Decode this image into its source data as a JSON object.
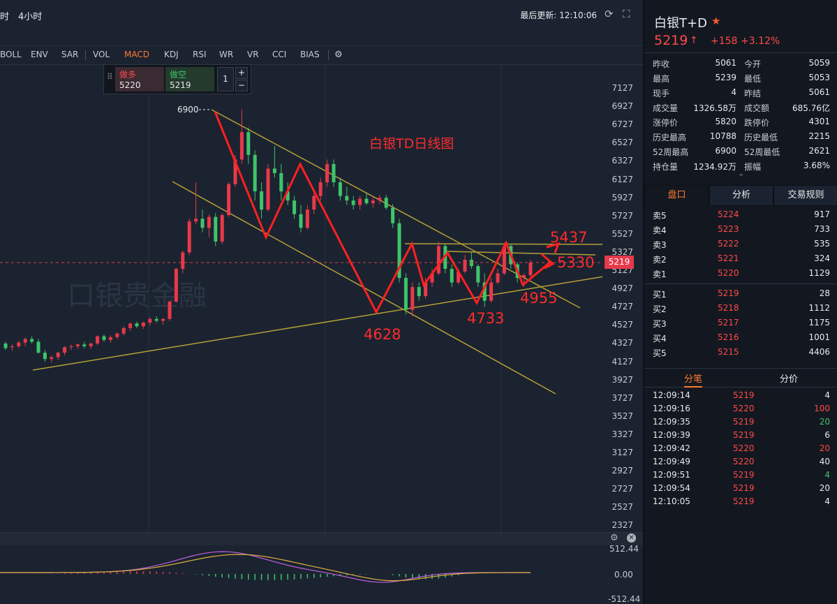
{
  "toolbar": {
    "timeframes": [
      "时",
      "4小时"
    ],
    "last_update": "最后更新: 12:10:06",
    "indicators": [
      "BOLL",
      "ENV",
      "SAR",
      "VOL",
      "MACD",
      "KDJ",
      "RSI",
      "WR",
      "VR",
      "CCI",
      "BIAS"
    ],
    "active_indicator": "MACD"
  },
  "trade_box": {
    "long_label": "做多",
    "long_price": "5220",
    "short_label": "做空",
    "short_price": "5219",
    "quantity": "1",
    "plus": "+",
    "minus": "−"
  },
  "chart": {
    "title": "白银TD日线图",
    "high_marker": "6900",
    "price_tag": "5219",
    "annotations": [
      "4628",
      "4733",
      "4955",
      "5437",
      "5330"
    ],
    "watermark": "口银贵金融",
    "price_axis": [
      "7127",
      "6927",
      "6727",
      "6527",
      "6327",
      "6127",
      "5927",
      "5727",
      "5527",
      "5327",
      "5127",
      "4927",
      "4727",
      "4527",
      "4327",
      "4127",
      "3927",
      "3727",
      "3527",
      "3327",
      "3127",
      "2927",
      "2727",
      "2527",
      "2327"
    ],
    "macd_axis": [
      "512.44",
      "0.00",
      "-512.44"
    ],
    "colors": {
      "up": "#e8394a",
      "down": "#3fc46a",
      "trendline": "#b5a035",
      "annotation": "#ff2b2b"
    }
  },
  "chart_data": {
    "type": "candlestick",
    "title": "白银TD日线图",
    "ylim": [
      2327,
      7127
    ],
    "last_price": 5219,
    "swing_points": [
      6900,
      4628,
      4733,
      4955,
      5437,
      5330
    ],
    "ohlc_approx": [
      [
        4330,
        4350,
        4260,
        4280
      ],
      [
        4290,
        4320,
        4250,
        4300
      ],
      [
        4300,
        4360,
        4280,
        4340
      ],
      [
        4340,
        4400,
        4300,
        4380
      ],
      [
        4380,
        4410,
        4330,
        4350
      ],
      [
        4350,
        4380,
        4220,
        4230
      ],
      [
        4230,
        4260,
        4130,
        4160
      ],
      [
        4160,
        4200,
        4120,
        4180
      ],
      [
        4180,
        4240,
        4150,
        4230
      ],
      [
        4230,
        4300,
        4200,
        4290
      ],
      [
        4290,
        4320,
        4260,
        4300
      ],
      [
        4300,
        4330,
        4270,
        4320
      ],
      [
        4320,
        4350,
        4280,
        4300
      ],
      [
        4300,
        4340,
        4270,
        4330
      ],
      [
        4330,
        4420,
        4310,
        4410
      ],
      [
        4410,
        4430,
        4350,
        4370
      ],
      [
        4370,
        4420,
        4340,
        4400
      ],
      [
        4400,
        4450,
        4380,
        4440
      ],
      [
        4440,
        4520,
        4420,
        4500
      ],
      [
        4500,
        4560,
        4470,
        4550
      ],
      [
        4550,
        4570,
        4500,
        4520
      ],
      [
        4520,
        4570,
        4490,
        4560
      ],
      [
        4560,
        4620,
        4530,
        4600
      ],
      [
        4600,
        4630,
        4560,
        4580
      ],
      [
        4580,
        4610,
        4540,
        4600
      ],
      [
        4600,
        4800,
        4580,
        4790
      ],
      [
        4790,
        5160,
        4780,
        5150
      ],
      [
        5150,
        5350,
        5100,
        5330
      ],
      [
        5330,
        5700,
        5300,
        5670
      ],
      [
        5670,
        6100,
        5640,
        5700
      ],
      [
        5700,
        5800,
        5550,
        5600
      ],
      [
        5600,
        5750,
        5500,
        5720
      ],
      [
        5720,
        5760,
        5400,
        5450
      ],
      [
        5450,
        5760,
        5420,
        5740
      ],
      [
        5740,
        6100,
        5720,
        6080
      ],
      [
        6080,
        6400,
        6050,
        6350
      ],
      [
        6350,
        6900,
        6300,
        6650
      ],
      [
        6650,
        6700,
        6300,
        6400
      ],
      [
        6400,
        6450,
        5900,
        6000
      ],
      [
        6000,
        6100,
        5700,
        5800
      ],
      [
        5800,
        6300,
        5780,
        6250
      ],
      [
        6250,
        6500,
        6150,
        6200
      ],
      [
        6200,
        6300,
        5900,
        6000
      ],
      [
        6000,
        6100,
        5850,
        5900
      ],
      [
        5900,
        5950,
        5700,
        5750
      ],
      [
        5750,
        5850,
        5550,
        5600
      ],
      [
        5600,
        5850,
        5580,
        5800
      ],
      [
        5800,
        6000,
        5750,
        5950
      ],
      [
        5950,
        6150,
        5900,
        6100
      ],
      [
        6100,
        6350,
        6050,
        6300
      ],
      [
        6300,
        6350,
        6050,
        6100
      ],
      [
        6100,
        6150,
        5900,
        5950
      ],
      [
        5950,
        6050,
        5850,
        5900
      ],
      [
        5900,
        5950,
        5800,
        5850
      ],
      [
        5850,
        5950,
        5800,
        5920
      ],
      [
        5920,
        5980,
        5850,
        5870
      ],
      [
        5870,
        5950,
        5820,
        5900
      ],
      [
        5900,
        5960,
        5860,
        5930
      ],
      [
        5930,
        5960,
        5800,
        5820
      ],
      [
        5820,
        5860,
        5600,
        5650
      ],
      [
        5650,
        5700,
        5000,
        5050
      ],
      [
        5050,
        5100,
        4650,
        4700
      ],
      [
        4700,
        5000,
        4628,
        4950
      ],
      [
        4950,
        5000,
        4800,
        4850
      ],
      [
        4850,
        5050,
        4820,
        5000
      ],
      [
        5000,
        5150,
        4950,
        5100
      ],
      [
        5100,
        5450,
        5080,
        5400
      ],
      [
        5400,
        5420,
        5100,
        5150
      ],
      [
        5150,
        5200,
        4950,
        5000
      ],
      [
        5000,
        5150,
        4980,
        5120
      ],
      [
        5120,
        5300,
        5100,
        5250
      ],
      [
        5250,
        5330,
        5150,
        5180
      ],
      [
        5180,
        5200,
        4950,
        5000
      ],
      [
        5000,
        5100,
        4733,
        4800
      ],
      [
        4800,
        5050,
        4780,
        5000
      ],
      [
        5000,
        5150,
        4980,
        5100
      ],
      [
        5100,
        5437,
        5080,
        5400
      ],
      [
        5400,
        5420,
        5150,
        5200
      ],
      [
        5200,
        5220,
        5000,
        5050
      ],
      [
        5050,
        5100,
        4955,
        5080
      ],
      [
        5080,
        5250,
        5060,
        5219
      ]
    ]
  },
  "quote": {
    "name": "白银T+D",
    "star": "★",
    "price": "5219",
    "arrow": "↑",
    "change": "+158",
    "pct": "+3.12%",
    "stats": [
      [
        "昨收",
        "5061",
        "今开",
        "5059"
      ],
      [
        "最高",
        "5239",
        "最低",
        "5053"
      ],
      [
        "现手",
        "4",
        "昨结",
        "5061"
      ],
      [
        "成交量",
        "1326.58万",
        "成交额",
        "685.76亿"
      ],
      [
        "涨停价",
        "5820",
        "跌停价",
        "4301"
      ],
      [
        "历史最高",
        "10788",
        "历史最低",
        "2215"
      ],
      [
        "52周最高",
        "6900",
        "52周最低",
        "2621"
      ],
      [
        "持仓量",
        "1234.92万",
        "振幅",
        "3.68%"
      ]
    ],
    "collapse_icon": "⌃"
  },
  "tabs": [
    "盘口",
    "分析",
    "交易规则"
  ],
  "orderbook": {
    "asks": [
      [
        "卖5",
        "5224",
        "917"
      ],
      [
        "卖4",
        "5223",
        "733"
      ],
      [
        "卖3",
        "5222",
        "535"
      ],
      [
        "卖2",
        "5221",
        "324"
      ],
      [
        "卖1",
        "5220",
        "1129"
      ]
    ],
    "bids": [
      [
        "买1",
        "5219",
        "28"
      ],
      [
        "买2",
        "5218",
        "1112"
      ],
      [
        "买3",
        "5217",
        "1175"
      ],
      [
        "买4",
        "5216",
        "1001"
      ],
      [
        "买5",
        "5215",
        "4406"
      ]
    ]
  },
  "ticks_tabs": [
    "分笔",
    "分价"
  ],
  "ticks": [
    [
      "12:09:14",
      "5219",
      "4",
      "w"
    ],
    [
      "12:09:16",
      "5220",
      "100",
      "r"
    ],
    [
      "12:09:35",
      "5219",
      "20",
      "g"
    ],
    [
      "12:09:39",
      "5219",
      "6",
      "w"
    ],
    [
      "12:09:42",
      "5220",
      "20",
      "r"
    ],
    [
      "12:09:49",
      "5220",
      "40",
      "w"
    ],
    [
      "12:09:51",
      "5219",
      "4",
      "g"
    ],
    [
      "12:09:54",
      "5219",
      "20",
      "w"
    ],
    [
      "12:10:05",
      "5219",
      "4",
      "w"
    ]
  ]
}
